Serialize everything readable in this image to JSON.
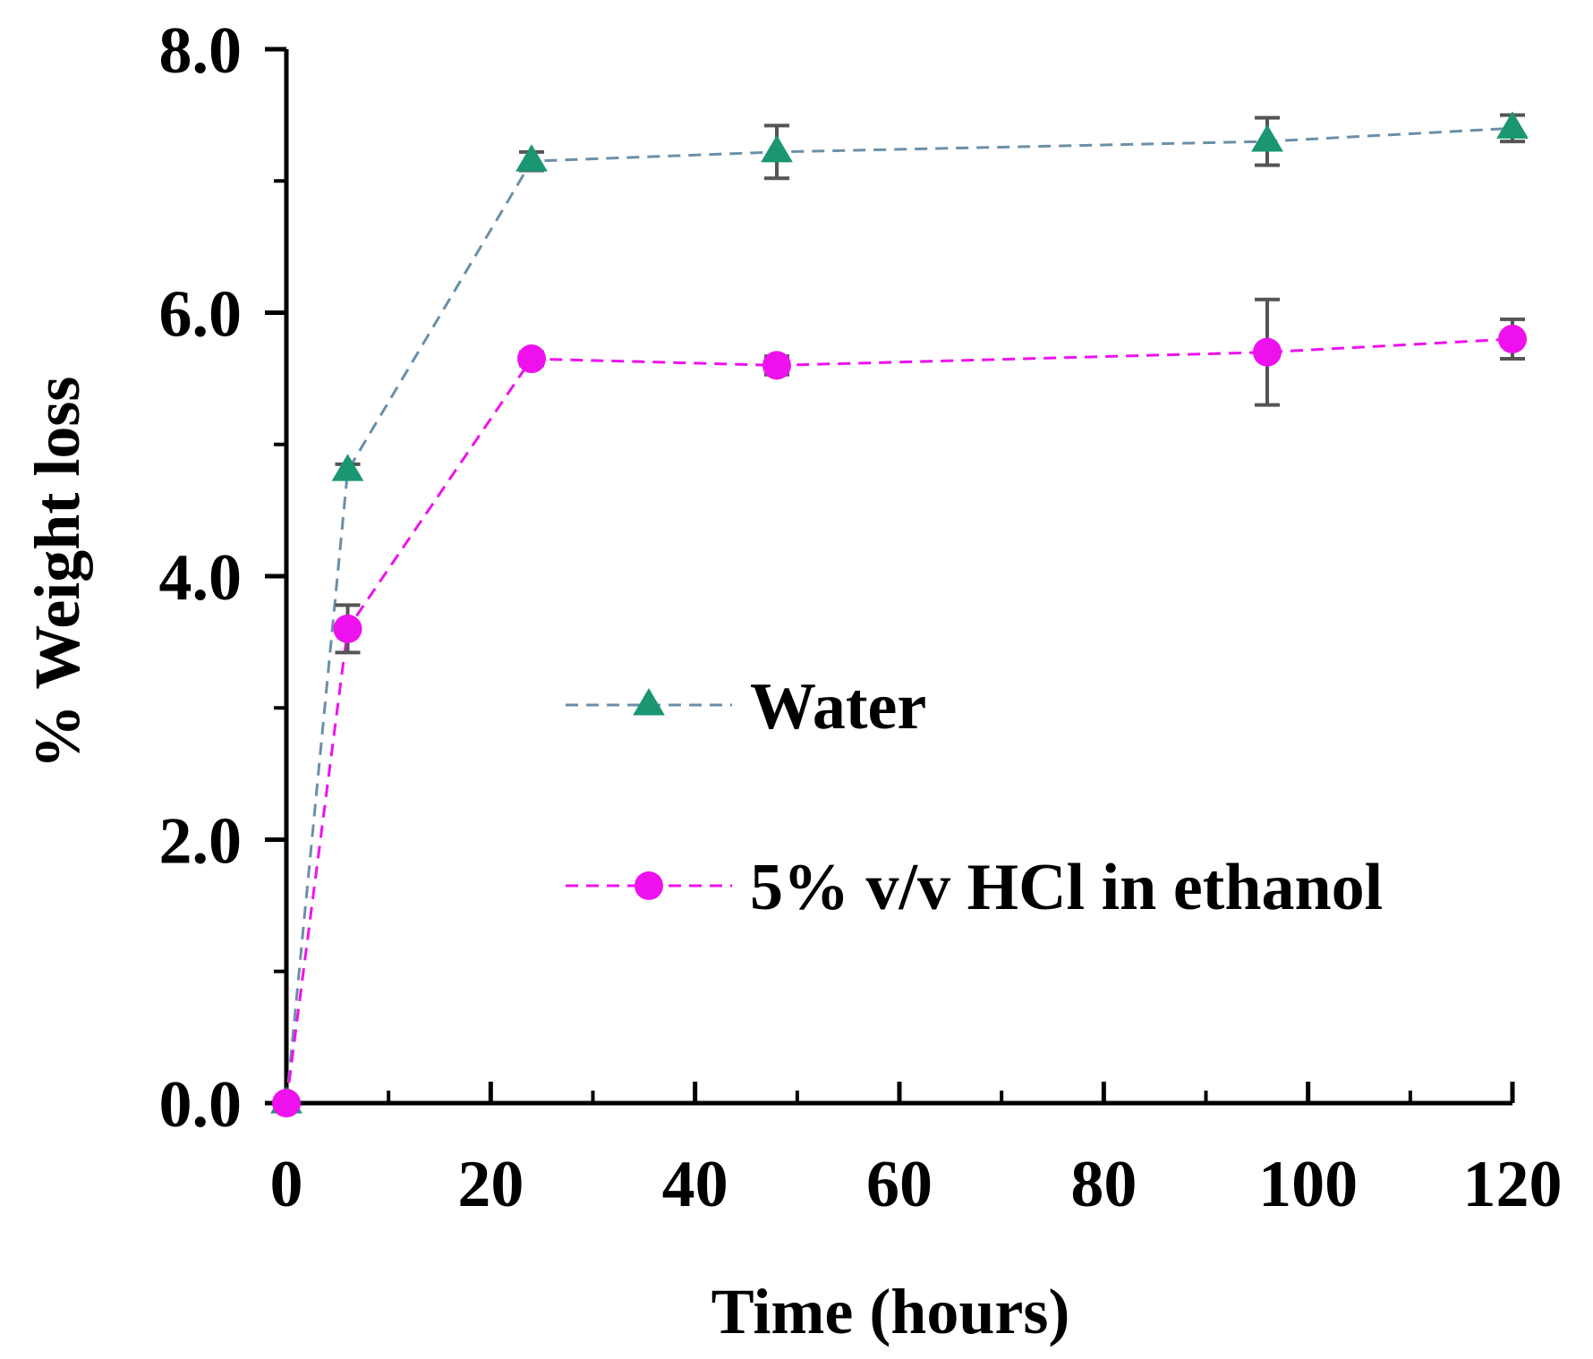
{
  "chart_data": {
    "type": "line",
    "title": "",
    "xlabel": "Time (hours)",
    "ylabel": "% Weight loss",
    "xlim": [
      0,
      120
    ],
    "ylim": [
      0,
      8
    ],
    "x_ticks": [
      0,
      20,
      40,
      60,
      80,
      100,
      120
    ],
    "x_tick_labels": [
      "0",
      "20",
      "40",
      "60",
      "80",
      "100",
      "120"
    ],
    "x_minor_ticks": [
      10,
      30,
      50,
      70,
      90,
      110
    ],
    "y_ticks": [
      0,
      2,
      4,
      6,
      8
    ],
    "y_tick_labels": [
      "0.0",
      "2.0",
      "4.0",
      "6.0",
      "8.0"
    ],
    "y_minor_ticks": [
      1,
      3,
      5,
      7
    ],
    "grid": false,
    "legend_position": "center-right",
    "series": [
      {
        "name": "Water",
        "color": "#1a9672",
        "line_color": "#6b8fa8",
        "marker": "triangle",
        "x": [
          0,
          6,
          24,
          48,
          96,
          120
        ],
        "y": [
          0.0,
          4.8,
          7.15,
          7.22,
          7.3,
          7.4
        ],
        "error": [
          0.0,
          0.05,
          0.07,
          0.2,
          0.18,
          0.1
        ]
      },
      {
        "name": "5% v/v HCl in ethanol",
        "color": "#ee11ee",
        "line_color": "#ee11ee",
        "marker": "circle",
        "x": [
          0,
          6,
          24,
          48,
          96,
          120
        ],
        "y": [
          0.0,
          3.6,
          5.65,
          5.6,
          5.7,
          5.8
        ],
        "error": [
          0.0,
          0.18,
          0.05,
          0.07,
          0.4,
          0.15
        ]
      }
    ]
  }
}
